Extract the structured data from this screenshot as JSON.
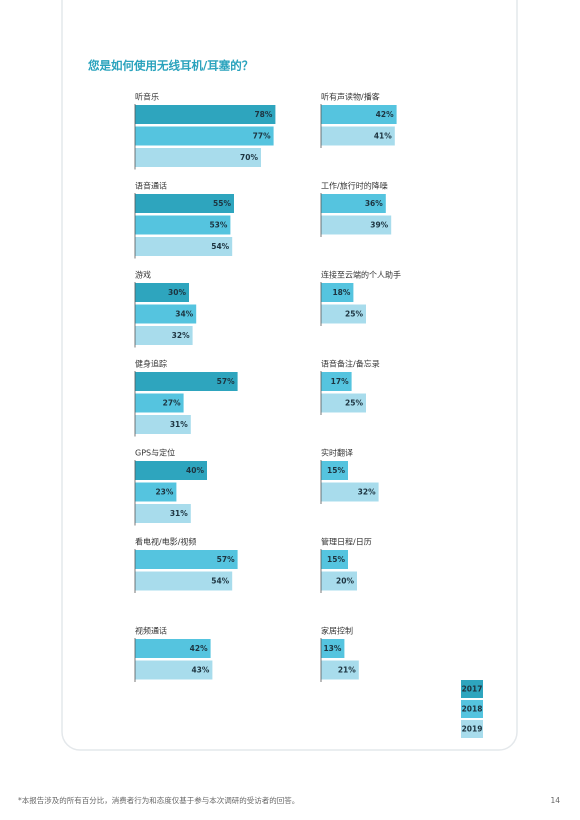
{
  "chart_data": {
    "type": "bar",
    "title": "您是如何使用无线耳机/耳塞的？",
    "categories": [
      "听音乐",
      "语音通话",
      "游戏",
      "健身追踪",
      "GPS与定位",
      "看电视/电影/视频",
      "视频通话",
      "听有声读物/播客",
      "工作/旅行时的降噪",
      "连接至云端的个人助手",
      "语音备注/备忘录",
      "实时翻译",
      "管理日程/日历",
      "家居控制"
    ],
    "series": [
      {
        "name": "2017",
        "color": "#2ea5be",
        "values": [
          78,
          55,
          30,
          57,
          40,
          null,
          null,
          null,
          null,
          null,
          null,
          null,
          null,
          null
        ],
        "value_labels": [
          "78%",
          "55%",
          "30%",
          "57%",
          "40%",
          null,
          null,
          null,
          null,
          null,
          null,
          null,
          null,
          null
        ]
      },
      {
        "name": "2018",
        "color": "#55c4df",
        "values": [
          77,
          53,
          34,
          27,
          23,
          57,
          42,
          42,
          36,
          18,
          17,
          15,
          15,
          13
        ],
        "value_labels": [
          "77%",
          "53%",
          "34%",
          "27%",
          "23%",
          "57%",
          "42%",
          "42%",
          "36%",
          "18%",
          "17%",
          "15%",
          "15%",
          "13%"
        ]
      },
      {
        "name": "2019",
        "color": "#a8dcec",
        "values": [
          70,
          54,
          32,
          31,
          31,
          54,
          43,
          41,
          39,
          25,
          25,
          32,
          20,
          21
        ],
        "value_labels": [
          "70%",
          "54%",
          "32%",
          "31%",
          "31%",
          "54%",
          "43%",
          "41%",
          "39%",
          "25%",
          "25%",
          "32%",
          "20%",
          "21%"
        ]
      }
    ],
    "footnote": "*本报告涉及的所有百分比，消费者行为和态度仅基于参与本次调研的受访者的回答。",
    "page_number": "14"
  }
}
